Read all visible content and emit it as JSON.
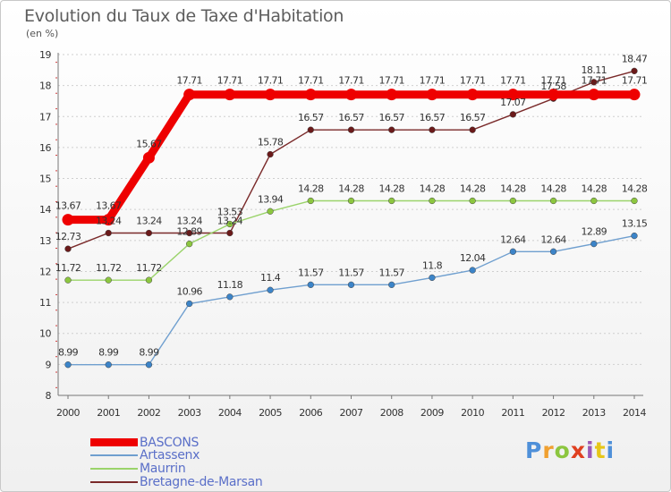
{
  "title": "Evolution du Taux de Taxe d'Habitation",
  "subtitle": "(en %)",
  "brand": "Proxiti",
  "brand_colors": [
    "#4f90d9",
    "#f0a030",
    "#8cc63f",
    "#e04020",
    "#9b59b6",
    "#e6c619",
    "#4f90d9"
  ],
  "chart_data": {
    "type": "line",
    "title": "Evolution du Taux de Taxe d'Habitation",
    "ylabel": "(en %)",
    "xlabel": "",
    "x": [
      "2000",
      "2001",
      "2002",
      "2003",
      "2004",
      "2005",
      "2006",
      "2007",
      "2008",
      "2009",
      "2010",
      "2011",
      "2012",
      "2013",
      "2014"
    ],
    "ylim": [
      8,
      19
    ],
    "yticks": [
      8,
      9,
      10,
      11,
      12,
      13,
      14,
      15,
      16,
      17,
      18,
      19
    ],
    "grid": "horizontal dashed",
    "legend_placement": "bottom-left",
    "series": [
      {
        "name": "Bretagne-de-Marsan",
        "color": "#7a2a2a",
        "marker": "#6b1a1a",
        "values": [
          12.73,
          13.24,
          13.24,
          13.24,
          13.24,
          15.78,
          16.57,
          16.57,
          16.57,
          16.57,
          16.57,
          17.07,
          17.58,
          18.11,
          18.47
        ]
      },
      {
        "name": "Maurrin",
        "color": "#9ad36a",
        "marker": "#8cc63f",
        "values": [
          11.72,
          11.72,
          11.72,
          12.89,
          13.53,
          13.94,
          14.28,
          14.28,
          14.28,
          14.28,
          14.28,
          14.28,
          14.28,
          14.28,
          14.28
        ]
      },
      {
        "name": "Artassenx",
        "color": "#6f9fcf",
        "marker": "#3c84c8",
        "values": [
          8.99,
          8.99,
          8.99,
          10.96,
          11.18,
          11.4,
          11.57,
          11.57,
          11.57,
          11.8,
          12.04,
          12.64,
          12.64,
          12.89,
          13.15
        ]
      },
      {
        "name": "BASCONS",
        "color": "#ee0000",
        "marker": "#ee0000",
        "values": [
          13.67,
          13.67,
          15.67,
          17.71,
          17.71,
          17.71,
          17.71,
          17.71,
          17.71,
          17.71,
          17.71,
          17.71,
          17.71,
          17.71,
          17.71
        ]
      }
    ],
    "value_labels": {
      "Bretagne-de-Marsan": [
        "12.73",
        "13.24",
        "13.24",
        "13.24",
        "13.24",
        "15.78",
        "16.57",
        "16.57",
        "16.57",
        "16.57",
        "16.57",
        "17.07",
        "17.58",
        "18.11",
        "18.47"
      ],
      "Maurrin": [
        "11.72",
        "11.72",
        "11.72",
        "12.89",
        "13.53",
        "13.94",
        "14.28",
        "14.28",
        "14.28",
        "14.28",
        "14.28",
        "14.28",
        "14.28",
        "14.28",
        "14.28"
      ],
      "Artassenx": [
        "8.99",
        "8.99",
        "8.99",
        "10.96",
        "11.18",
        "11.4",
        "11.57",
        "11.57",
        "11.57",
        "11.8",
        "12.04",
        "12.64",
        "12.64",
        "12.89",
        "13.15"
      ],
      "BASCONS": [
        "13.67",
        "13.67",
        "15.67",
        "17.71",
        "17.71",
        "17.71",
        "17.71",
        "17.71",
        "17.71",
        "17.71",
        "17.71",
        "17.71",
        "17.71",
        "17.71",
        "17.71"
      ]
    },
    "legend": [
      "BASCONS",
      "Artassenx",
      "Maurrin",
      "Bretagne-de-Marsan"
    ]
  }
}
